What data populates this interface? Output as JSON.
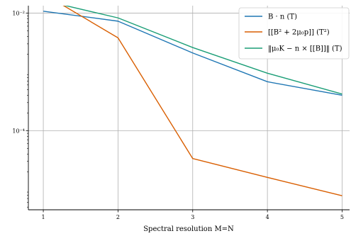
{
  "chart_data": {
    "type": "line",
    "title": "",
    "xlabel": "Spectral resolution M=N",
    "ylabel": "",
    "x": [
      1,
      2,
      3,
      4,
      5
    ],
    "xticks": [
      "1",
      "2",
      "3",
      "4",
      "5"
    ],
    "xlim": [
      0.8,
      5.1
    ],
    "ylim": [
      4.5e-06,
      0.0134
    ],
    "yscale": "log",
    "yticks": [
      {
        "value": 0.01,
        "label": "10⁻²"
      },
      {
        "value": 0.0001,
        "label": "10⁻⁴"
      }
    ],
    "grid": true,
    "legend_position": "top-right",
    "series": [
      {
        "name": "B · n (T)",
        "color": "#1f77b4",
        "values": [
          0.0108,
          0.0073,
          0.0021,
          0.00068,
          0.0004
        ]
      },
      {
        "name": "[[B² + 2μ₀p]] (T²)",
        "color": "#d95f02",
        "values": [
          0.0215,
          0.0038,
          3.35e-05,
          1.6e-05,
          7.8e-06
        ]
      },
      {
        "name": "‖μ₀K − n × [[B]]‖ (T)",
        "color": "#1b9e77",
        "values": [
          0.0165,
          0.0083,
          0.0026,
          0.00095,
          0.00042
        ]
      }
    ]
  }
}
